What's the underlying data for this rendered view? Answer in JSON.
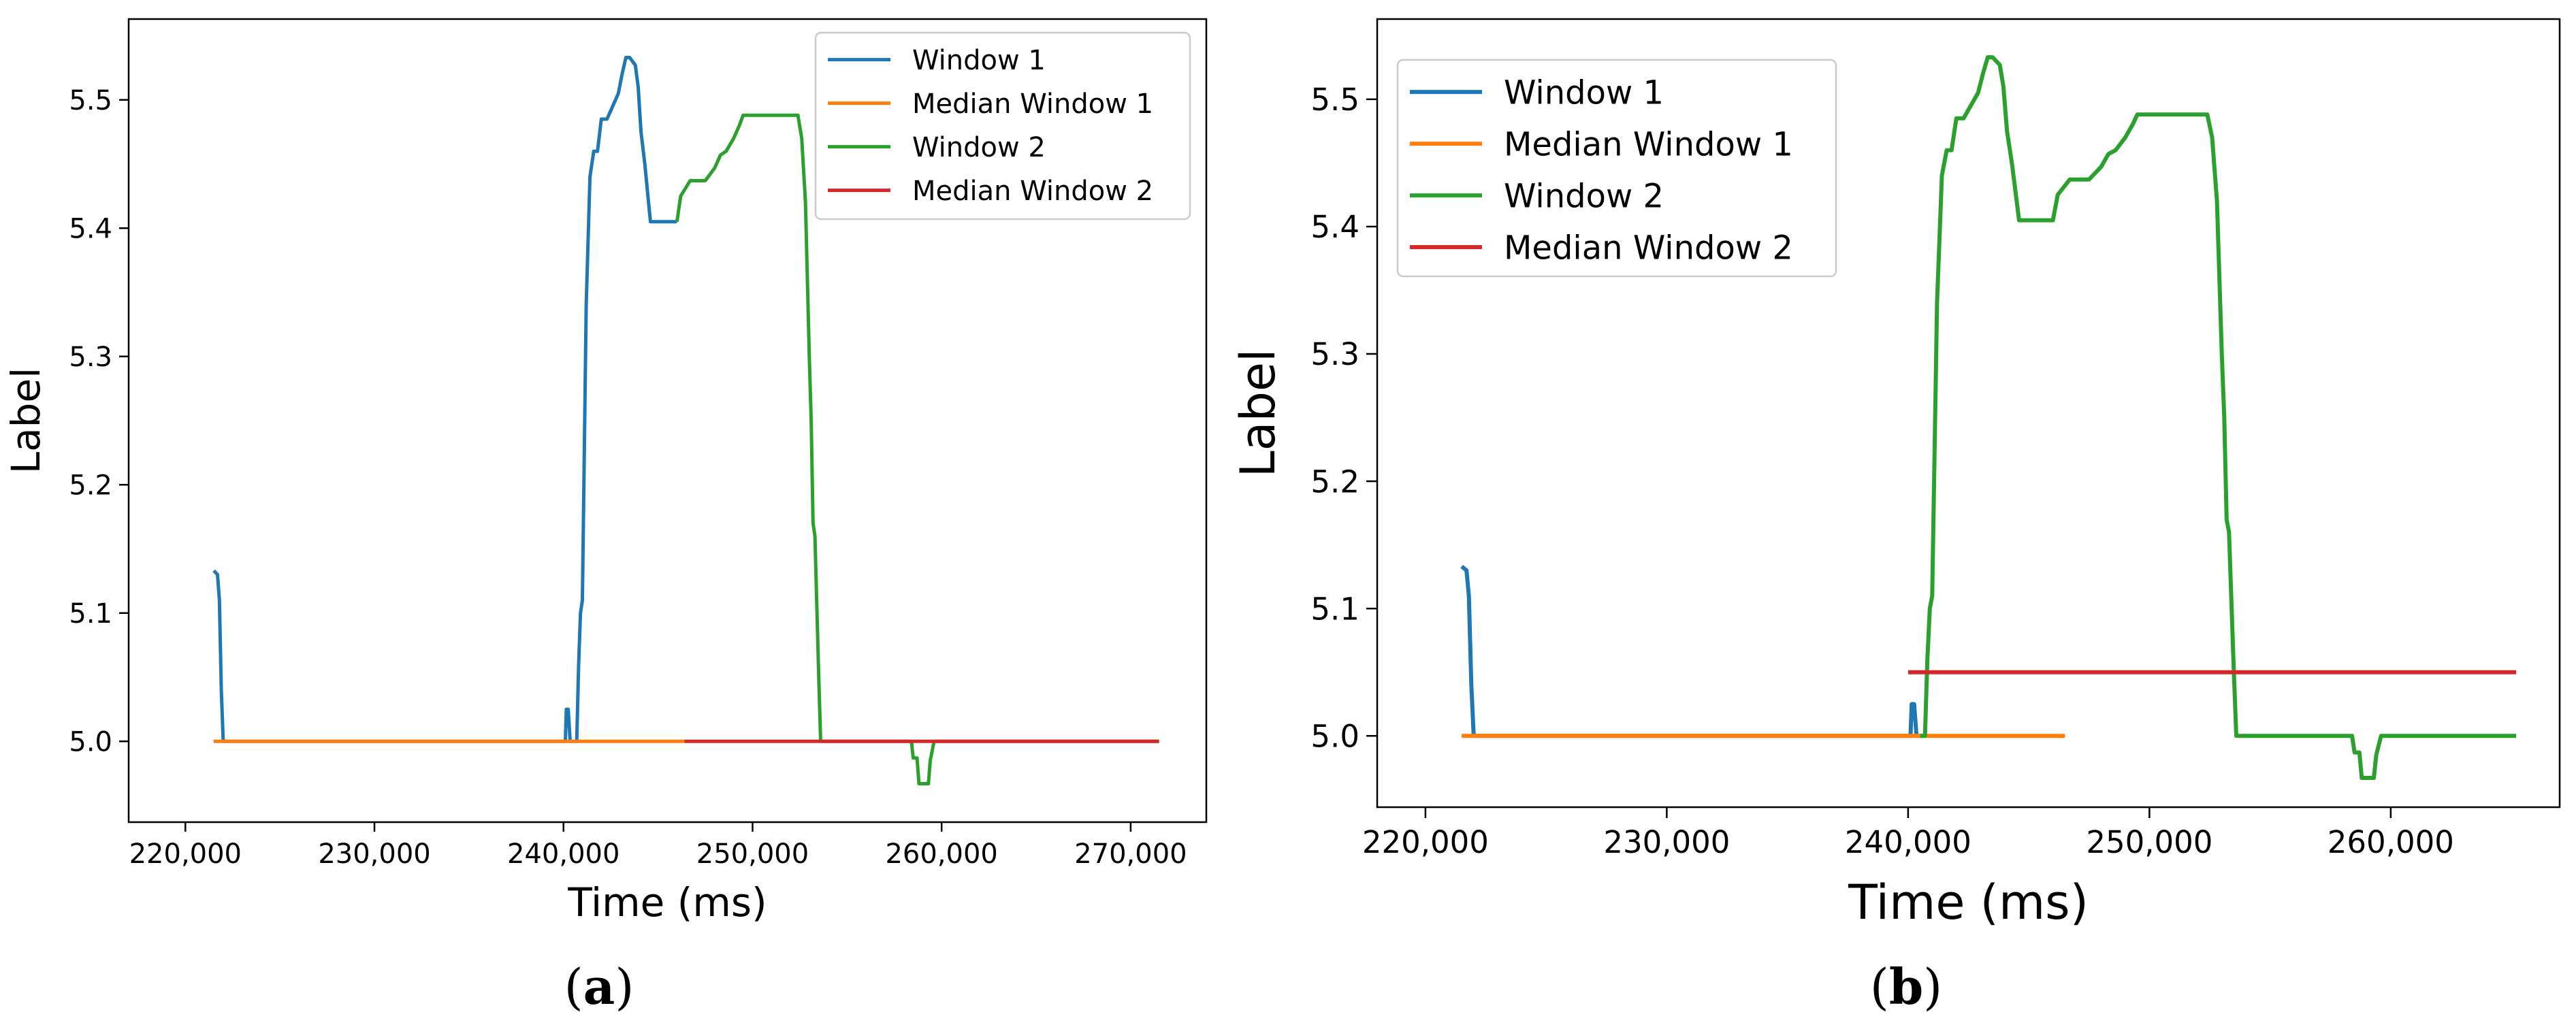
{
  "chart_data": [
    {
      "type": "line",
      "caption": "(a)",
      "xlabel": "Time (ms)",
      "ylabel": "Label",
      "xlim": [
        217000,
        274000
      ],
      "ylim": [
        4.937,
        5.563
      ],
      "xticks": [
        220000,
        230000,
        240000,
        250000,
        260000,
        270000
      ],
      "xtick_labels": [
        "220,000",
        "230,000",
        "240,000",
        "250,000",
        "260,000",
        "270,000"
      ],
      "yticks": [
        5.0,
        5.1,
        5.2,
        5.3,
        5.4,
        5.5
      ],
      "ytick_labels": [
        "5.0",
        "5.1",
        "5.2",
        "5.3",
        "5.4",
        "5.5"
      ],
      "grid": false,
      "legend_position": "top-right",
      "series": [
        {
          "name": "Window 1",
          "color": "#1f77b4",
          "x": [
            221500,
            221700,
            221800,
            221900,
            222000,
            240100,
            240150,
            240250,
            240350,
            240500,
            240700,
            240800,
            240900,
            241000,
            241200,
            241400,
            241600,
            241800,
            242000,
            242300,
            242600,
            242900,
            243100,
            243300,
            243500,
            243800,
            243950,
            244100,
            244300,
            244500,
            244600,
            244700,
            244800,
            244900,
            245000,
            245500,
            246000
          ],
          "y": [
            5.133,
            5.13,
            5.11,
            5.04,
            5.0,
            5.0,
            5.025,
            5.025,
            5.0,
            5.0,
            5.0,
            5.06,
            5.1,
            5.11,
            5.34,
            5.44,
            5.46,
            5.46,
            5.485,
            5.485,
            5.495,
            5.505,
            5.52,
            5.533,
            5.533,
            5.527,
            5.51,
            5.475,
            5.45,
            5.42,
            5.405,
            5.405,
            5.405,
            5.405,
            5.405,
            5.405,
            5.405
          ]
        },
        {
          "name": "Median Window 1",
          "color": "#ff7f0e",
          "x": [
            221500,
            246400
          ],
          "y": [
            5.0,
            5.0
          ]
        },
        {
          "name": "Window 2",
          "color": "#2ca02c",
          "x": [
            246000,
            246200,
            246700,
            247500,
            248000,
            248300,
            248600,
            249000,
            249300,
            249500,
            250000,
            251000,
            252000,
            252400,
            252600,
            252800,
            253000,
            253100,
            253200,
            253300,
            253500,
            253600,
            254000,
            257000,
            258400,
            258500,
            258700,
            258800,
            259300,
            259400,
            259600,
            260000,
            265000,
            271500
          ],
          "y": [
            5.405,
            5.425,
            5.437,
            5.437,
            5.447,
            5.457,
            5.46,
            5.47,
            5.48,
            5.488,
            5.488,
            5.488,
            5.488,
            5.488,
            5.47,
            5.42,
            5.3,
            5.25,
            5.17,
            5.16,
            5.05,
            5.0,
            5.0,
            5.0,
            5.0,
            4.987,
            4.987,
            4.967,
            4.967,
            4.985,
            5.0,
            5.0,
            5.0,
            5.0
          ]
        },
        {
          "name": "Median Window 2",
          "color": "#d62728",
          "x": [
            246400,
            271500
          ],
          "y": [
            5.0,
            5.0
          ]
        }
      ]
    },
    {
      "type": "line",
      "caption": "(b)",
      "xlabel": "Time (ms)",
      "ylabel": "Label",
      "xlim": [
        218000,
        267000
      ],
      "ylim": [
        4.944,
        5.563
      ],
      "xticks": [
        220000,
        230000,
        240000,
        250000,
        260000
      ],
      "xtick_labels": [
        "220,000",
        "230,000",
        "240,000",
        "250,000",
        "260,000"
      ],
      "yticks": [
        5.0,
        5.1,
        5.2,
        5.3,
        5.4,
        5.5
      ],
      "ytick_labels": [
        "5.0",
        "5.1",
        "5.2",
        "5.3",
        "5.4",
        "5.5"
      ],
      "grid": false,
      "legend_position": "top-left",
      "series": [
        {
          "name": "Window 1",
          "color": "#1f77b4",
          "x": [
            221500,
            221700,
            221800,
            221900,
            222000,
            240100,
            240150,
            240250,
            240350,
            240500
          ],
          "y": [
            5.133,
            5.13,
            5.11,
            5.04,
            5.0,
            5.0,
            5.025,
            5.025,
            5.0,
            5.0
          ]
        },
        {
          "name": "Median Window 1",
          "color": "#ff7f0e",
          "x": [
            221500,
            246500
          ],
          "y": [
            5.0,
            5.0
          ]
        },
        {
          "name": "Window 2",
          "color": "#2ca02c",
          "x": [
            240500,
            240700,
            240800,
            240900,
            241000,
            241200,
            241400,
            241600,
            241800,
            242000,
            242300,
            242600,
            242900,
            243100,
            243300,
            243500,
            243800,
            243950,
            244100,
            244300,
            244500,
            244600,
            245000,
            245500,
            246000,
            246200,
            246700,
            247500,
            248000,
            248300,
            248600,
            249000,
            249300,
            249500,
            250000,
            251000,
            252000,
            252400,
            252600,
            252800,
            253000,
            253100,
            253200,
            253300,
            253500,
            253600,
            254000,
            257000,
            258400,
            258500,
            258700,
            258800,
            259300,
            259400,
            259600,
            260000,
            265200
          ],
          "y": [
            5.0,
            5.0,
            5.06,
            5.1,
            5.11,
            5.34,
            5.44,
            5.46,
            5.46,
            5.485,
            5.485,
            5.495,
            5.505,
            5.52,
            5.533,
            5.533,
            5.527,
            5.51,
            5.475,
            5.45,
            5.42,
            5.405,
            5.405,
            5.405,
            5.405,
            5.425,
            5.437,
            5.437,
            5.447,
            5.457,
            5.46,
            5.47,
            5.48,
            5.488,
            5.488,
            5.488,
            5.488,
            5.488,
            5.47,
            5.42,
            5.3,
            5.25,
            5.17,
            5.16,
            5.05,
            5.0,
            5.0,
            5.0,
            5.0,
            4.987,
            4.987,
            4.967,
            4.967,
            4.985,
            5.0,
            5.0,
            5.0
          ]
        },
        {
          "name": "Median Window 2",
          "color": "#d62728",
          "x": [
            240000,
            265200
          ],
          "y": [
            5.05,
            5.05
          ]
        }
      ]
    }
  ]
}
